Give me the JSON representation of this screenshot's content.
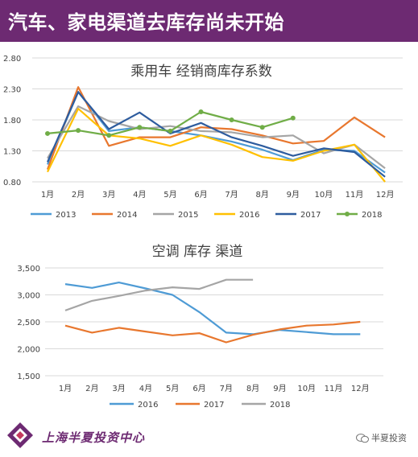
{
  "header": {
    "title": "汽车、家电渠道去库存尚未开始",
    "bg": "#6d2a72"
  },
  "footer": {
    "org": "上海半夏投资中心",
    "wechat": "半夏投资"
  },
  "chart_data": [
    {
      "type": "line",
      "title": "乘用车 经销商库存系数",
      "categories": [
        "1月",
        "2月",
        "3月",
        "4月",
        "5月",
        "6月",
        "7月",
        "8月",
        "9月",
        "10月",
        "11月",
        "12月"
      ],
      "y_ticks": [
        "0.80",
        "1.30",
        "1.80",
        "2.30",
        "2.80"
      ],
      "ylim": [
        0.8,
        2.8
      ],
      "grid": true,
      "legend_position": "bottom",
      "series": [
        {
          "name": "2013",
          "color": "#4e9bd5",
          "values": [
            1.08,
            2.25,
            1.62,
            1.68,
            1.62,
            1.55,
            1.45,
            1.32,
            1.15,
            1.32,
            1.3,
            0.95
          ]
        },
        {
          "name": "2014",
          "color": "#e8772e",
          "values": [
            1.0,
            2.33,
            1.38,
            1.52,
            1.52,
            1.68,
            1.65,
            1.55,
            1.42,
            1.46,
            1.84,
            1.52
          ]
        },
        {
          "name": "2015",
          "color": "#a5a5a5",
          "values": [
            1.18,
            2.02,
            1.78,
            1.65,
            1.7,
            1.62,
            1.6,
            1.52,
            1.55,
            1.26,
            1.4,
            1.02
          ]
        },
        {
          "name": "2016",
          "color": "#ffc000",
          "values": [
            0.96,
            1.98,
            1.55,
            1.5,
            1.38,
            1.55,
            1.4,
            1.2,
            1.14,
            1.3,
            1.4,
            0.8
          ]
        },
        {
          "name": "2017",
          "color": "#2e5c9e",
          "values": [
            1.12,
            2.25,
            1.65,
            1.92,
            1.58,
            1.75,
            1.52,
            1.38,
            1.22,
            1.34,
            1.28,
            0.88
          ]
        },
        {
          "name": "2018",
          "color": "#70ad47",
          "values": [
            1.58,
            1.63,
            1.55,
            1.68,
            1.62,
            1.93,
            1.8,
            1.68,
            1.83,
            null,
            null,
            null
          ]
        }
      ]
    },
    {
      "type": "line",
      "title": "空调 库存 渠道",
      "categories": [
        "1月",
        "2月",
        "3月",
        "4月",
        "5月",
        "6月",
        "7月",
        "8月",
        "9月",
        "10月",
        "11月",
        "12月"
      ],
      "y_ticks": [
        "1,500",
        "2,000",
        "2,500",
        "3,000",
        "3,500"
      ],
      "ylim": [
        1500,
        3500
      ],
      "grid": true,
      "legend_position": "bottom",
      "series": [
        {
          "name": "2016",
          "color": "#4e9bd5",
          "values": [
            3200,
            3130,
            3230,
            3120,
            3000,
            2680,
            2300,
            2270,
            2350,
            2310,
            2270,
            2270
          ]
        },
        {
          "name": "2017",
          "color": "#e8772e",
          "values": [
            2430,
            2300,
            2390,
            2320,
            2250,
            2290,
            2120,
            2260,
            2360,
            2430,
            2450,
            2500
          ]
        },
        {
          "name": "2018",
          "color": "#a5a5a5",
          "values": [
            2710,
            2890,
            2980,
            3080,
            3140,
            3110,
            3280,
            3280,
            null,
            null,
            null,
            null
          ]
        }
      ]
    }
  ]
}
